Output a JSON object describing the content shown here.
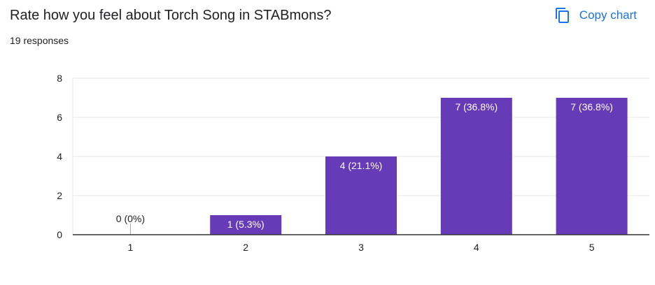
{
  "question": {
    "title": "Rate how you feel about Torch Song in STABmons?",
    "responses": "19 responses"
  },
  "actions": {
    "copy_label": "Copy chart",
    "copy_icon": "copy-icon"
  },
  "colors": {
    "bar": "#673ab7",
    "accent": "#1a73e8",
    "grid": "#e8e8e8",
    "axis": "#333333",
    "text": "#202124",
    "bar_label": "#ffffff"
  },
  "chart_data": {
    "type": "bar",
    "title": "",
    "xlabel": "",
    "ylabel": "",
    "categories": [
      "1",
      "2",
      "3",
      "4",
      "5"
    ],
    "values": [
      0,
      1,
      4,
      7,
      7
    ],
    "data_labels": [
      "0 (0%)",
      "1 (5.3%)",
      "4 (21.1%)",
      "7 (36.8%)",
      "7 (36.8%)"
    ],
    "ylim": [
      0,
      8
    ],
    "yticks": [
      0,
      2,
      4,
      6,
      8
    ],
    "grid": true,
    "legend": "none"
  }
}
